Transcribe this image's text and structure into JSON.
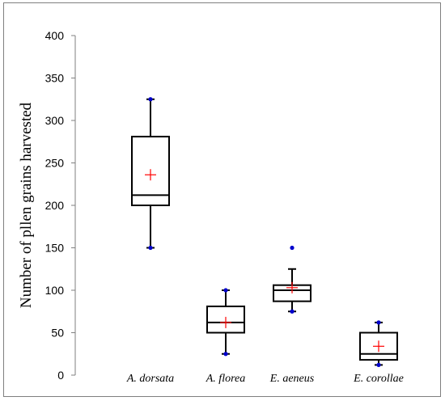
{
  "chart_data": {
    "type": "boxplot",
    "title": "",
    "xlabel": "",
    "ylabel": "Number of pllen grains harvested",
    "ylim": [
      0,
      400
    ],
    "yticks": [
      0,
      50,
      100,
      150,
      200,
      250,
      300,
      350,
      400
    ],
    "ytick_labels": [
      "0",
      "50",
      "100",
      "150",
      "200",
      "250",
      "300",
      "350",
      "400"
    ],
    "grid": false,
    "legend": "none",
    "categories": [
      "A. dorsata",
      "A. florea",
      "E. aeneus",
      "E. corollae"
    ],
    "boxes": [
      {
        "category": "A. dorsata",
        "whisker_low": 150,
        "q1": 200,
        "median": 212,
        "q3": 281,
        "whisker_high": 325,
        "mean": 236,
        "extremes": [
          150,
          325
        ]
      },
      {
        "category": "A. florea",
        "whisker_low": 25,
        "q1": 50,
        "median": 62,
        "q3": 81,
        "whisker_high": 100,
        "mean": 62,
        "extremes": [
          25,
          100
        ]
      },
      {
        "category": "E. aeneus",
        "whisker_low": 75,
        "q1": 87,
        "median": 100,
        "q3": 106,
        "whisker_high": 125,
        "mean": 103,
        "extremes": [
          75,
          150
        ]
      },
      {
        "category": "E. corollae",
        "whisker_low": 12,
        "q1": 18,
        "median": 25,
        "q3": 50,
        "whisker_high": 62,
        "mean": 34,
        "extremes": [
          12,
          62
        ]
      }
    ],
    "colors": {
      "box": "#000000",
      "whisker": "#000000",
      "mean_marker": "#ff0000",
      "extreme_point": "#0000cc",
      "axis": "#7f7f7f",
      "frame": "#7f7f7f"
    }
  }
}
